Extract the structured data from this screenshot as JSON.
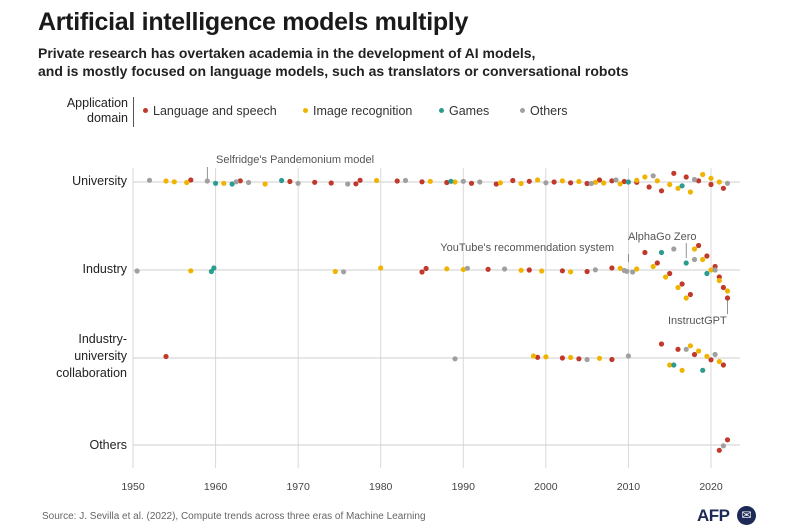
{
  "title": "Artificial intelligence models multiply",
  "subtitle_line1": "Private research has overtaken academia in the development of AI models,",
  "subtitle_line2": "and is mostly focused on language models, such as translators or conversational robots",
  "legend": {
    "title_line1": "Application",
    "title_line2": "domain",
    "items": [
      {
        "label": "Language and speech",
        "color": "#c0392b"
      },
      {
        "label": "Image recognition",
        "color": "#f0b400"
      },
      {
        "label": "Games",
        "color": "#2a9d8f"
      },
      {
        "label": "Others",
        "color": "#a0a0a0"
      }
    ]
  },
  "row_labels": {
    "university": "University",
    "industry": "Industry",
    "collab_line1": "Industry-",
    "collab_line2": "university",
    "collab_line3": "collaboration",
    "others": "Others"
  },
  "source": "Source: J. Sevilla et al. (2022), Compute trends across three eras of Machine Learning",
  "logo": {
    "text": "AFP",
    "icon": "afp-circle-icon"
  },
  "chart_data": {
    "type": "scatter",
    "title": "Artificial intelligence models multiply",
    "xlim": [
      1950,
      2022
    ],
    "x_ticks": [
      1950,
      1960,
      1970,
      1980,
      1990,
      2000,
      2010,
      2020
    ],
    "grid": true,
    "legend_placement": "top-left",
    "rows": [
      "University",
      "Industry",
      "Industry-university collaboration",
      "Others"
    ],
    "annotations": [
      {
        "text": "Selfridge's Pandemonium model",
        "row": "University",
        "x": 1959
      },
      {
        "text": "YouTube's recommendation system",
        "row": "Industry",
        "x": 2010
      },
      {
        "text": "AlphaGo Zero",
        "row": "Industry",
        "x": 2017
      },
      {
        "text": "InstructGPT",
        "row": "Industry",
        "x": 2022
      }
    ],
    "series": [
      {
        "name": "Language and speech",
        "color": "#c0392b",
        "points": [
          {
            "row": "University",
            "x": 1957
          },
          {
            "row": "University",
            "x": 1963
          },
          {
            "row": "University",
            "x": 1969
          },
          {
            "row": "University",
            "x": 1972
          },
          {
            "row": "University",
            "x": 1974
          },
          {
            "row": "University",
            "x": 1977
          },
          {
            "row": "University",
            "x": 1977.5
          },
          {
            "row": "University",
            "x": 1982
          },
          {
            "row": "University",
            "x": 1985
          },
          {
            "row": "University",
            "x": 1988
          },
          {
            "row": "University",
            "x": 1991
          },
          {
            "row": "University",
            "x": 1994
          },
          {
            "row": "University",
            "x": 1996
          },
          {
            "row": "University",
            "x": 1998
          },
          {
            "row": "University",
            "x": 2001
          },
          {
            "row": "University",
            "x": 2003
          },
          {
            "row": "University",
            "x": 2005
          },
          {
            "row": "University",
            "x": 2006.5
          },
          {
            "row": "University",
            "x": 2008
          },
          {
            "row": "University",
            "x": 2009.5
          },
          {
            "row": "University",
            "x": 2011
          },
          {
            "row": "University",
            "x": 2012.5
          },
          {
            "row": "University",
            "x": 2014
          },
          {
            "row": "University",
            "x": 2015.5
          },
          {
            "row": "University",
            "x": 2017
          },
          {
            "row": "University",
            "x": 2018.5
          },
          {
            "row": "University",
            "x": 2020
          },
          {
            "row": "University",
            "x": 2021.5
          },
          {
            "row": "Industry",
            "x": 1985
          },
          {
            "row": "Industry",
            "x": 1985.5
          },
          {
            "row": "Industry",
            "x": 1993
          },
          {
            "row": "Industry",
            "x": 1998
          },
          {
            "row": "Industry",
            "x": 2002
          },
          {
            "row": "Industry",
            "x": 2005
          },
          {
            "row": "Industry",
            "x": 2008
          },
          {
            "row": "Industry",
            "x": 2012
          },
          {
            "row": "Industry",
            "x": 2013.5
          },
          {
            "row": "Industry",
            "x": 2015
          },
          {
            "row": "Industry",
            "x": 2016.5
          },
          {
            "row": "Industry",
            "x": 2017.5
          },
          {
            "row": "Industry",
            "x": 2018.5
          },
          {
            "row": "Industry",
            "x": 2019.5
          },
          {
            "row": "Industry",
            "x": 2020.5
          },
          {
            "row": "Industry",
            "x": 2021
          },
          {
            "row": "Industry",
            "x": 2021.5
          },
          {
            "row": "Industry",
            "x": 2022
          },
          {
            "row": "Industry-university collaboration",
            "x": 1954
          },
          {
            "row": "Industry-university collaboration",
            "x": 1999
          },
          {
            "row": "Industry-university collaboration",
            "x": 2002
          },
          {
            "row": "Industry-university collaboration",
            "x": 2004
          },
          {
            "row": "Industry-university collaboration",
            "x": 2008
          },
          {
            "row": "Industry-university collaboration",
            "x": 2014
          },
          {
            "row": "Industry-university collaboration",
            "x": 2016
          },
          {
            "row": "Industry-university collaboration",
            "x": 2018
          },
          {
            "row": "Industry-university collaboration",
            "x": 2020
          },
          {
            "row": "Industry-university collaboration",
            "x": 2021.5
          },
          {
            "row": "Others",
            "x": 2021
          },
          {
            "row": "Others",
            "x": 2022
          }
        ]
      },
      {
        "name": "Image recognition",
        "color": "#f0b400",
        "points": [
          {
            "row": "University",
            "x": 1954
          },
          {
            "row": "University",
            "x": 1955
          },
          {
            "row": "University",
            "x": 1956.5
          },
          {
            "row": "University",
            "x": 1961
          },
          {
            "row": "University",
            "x": 1966
          },
          {
            "row": "University",
            "x": 1979.5
          },
          {
            "row": "University",
            "x": 1986
          },
          {
            "row": "University",
            "x": 1989
          },
          {
            "row": "University",
            "x": 1994.5
          },
          {
            "row": "University",
            "x": 1997
          },
          {
            "row": "University",
            "x": 1999
          },
          {
            "row": "University",
            "x": 2002
          },
          {
            "row": "University",
            "x": 2004
          },
          {
            "row": "University",
            "x": 2006
          },
          {
            "row": "University",
            "x": 2007
          },
          {
            "row": "University",
            "x": 2009
          },
          {
            "row": "University",
            "x": 2011
          },
          {
            "row": "University",
            "x": 2012
          },
          {
            "row": "University",
            "x": 2013.5
          },
          {
            "row": "University",
            "x": 2015
          },
          {
            "row": "University",
            "x": 2016
          },
          {
            "row": "University",
            "x": 2017.5
          },
          {
            "row": "University",
            "x": 2019
          },
          {
            "row": "University",
            "x": 2020
          },
          {
            "row": "University",
            "x": 2021
          },
          {
            "row": "Industry",
            "x": 1957
          },
          {
            "row": "Industry",
            "x": 1974.5
          },
          {
            "row": "Industry",
            "x": 1980
          },
          {
            "row": "Industry",
            "x": 1988
          },
          {
            "row": "Industry",
            "x": 1990
          },
          {
            "row": "Industry",
            "x": 1997
          },
          {
            "row": "Industry",
            "x": 1999.5
          },
          {
            "row": "Industry",
            "x": 2003
          },
          {
            "row": "Industry",
            "x": 2009
          },
          {
            "row": "Industry",
            "x": 2011
          },
          {
            "row": "Industry",
            "x": 2013
          },
          {
            "row": "Industry",
            "x": 2014.5
          },
          {
            "row": "Industry",
            "x": 2016
          },
          {
            "row": "Industry",
            "x": 2017
          },
          {
            "row": "Industry",
            "x": 2018
          },
          {
            "row": "Industry",
            "x": 2019
          },
          {
            "row": "Industry",
            "x": 2020
          },
          {
            "row": "Industry",
            "x": 2021
          },
          {
            "row": "Industry",
            "x": 2022
          },
          {
            "row": "Industry-university collaboration",
            "x": 1998.5
          },
          {
            "row": "Industry-university collaboration",
            "x": 2000
          },
          {
            "row": "Industry-university collaboration",
            "x": 2003
          },
          {
            "row": "Industry-university collaboration",
            "x": 2006.5
          },
          {
            "row": "Industry-university collaboration",
            "x": 2015
          },
          {
            "row": "Industry-university collaboration",
            "x": 2016.5
          },
          {
            "row": "Industry-university collaboration",
            "x": 2017.5
          },
          {
            "row": "Industry-university collaboration",
            "x": 2018.5
          },
          {
            "row": "Industry-university collaboration",
            "x": 2019.5
          },
          {
            "row": "Industry-university collaboration",
            "x": 2021
          }
        ]
      },
      {
        "name": "Games",
        "color": "#2a9d8f",
        "points": [
          {
            "row": "University",
            "x": 1960
          },
          {
            "row": "University",
            "x": 1962
          },
          {
            "row": "University",
            "x": 1968
          },
          {
            "row": "University",
            "x": 1988.5
          },
          {
            "row": "University",
            "x": 2010
          },
          {
            "row": "University",
            "x": 2016.5
          },
          {
            "row": "Industry",
            "x": 1959.5
          },
          {
            "row": "Industry",
            "x": 1959.8
          },
          {
            "row": "Industry",
            "x": 2014
          },
          {
            "row": "Industry",
            "x": 2017
          },
          {
            "row": "Industry",
            "x": 2019.5
          },
          {
            "row": "Industry-university collaboration",
            "x": 2015.5
          },
          {
            "row": "Industry-university collaboration",
            "x": 2019
          }
        ]
      },
      {
        "name": "Others",
        "color": "#a0a0a0",
        "points": [
          {
            "row": "University",
            "x": 1952
          },
          {
            "row": "University",
            "x": 1959
          },
          {
            "row": "University",
            "x": 1962.5
          },
          {
            "row": "University",
            "x": 1964
          },
          {
            "row": "University",
            "x": 1970
          },
          {
            "row": "University",
            "x": 1976
          },
          {
            "row": "University",
            "x": 1983
          },
          {
            "row": "University",
            "x": 1990
          },
          {
            "row": "University",
            "x": 1992
          },
          {
            "row": "University",
            "x": 2000
          },
          {
            "row": "University",
            "x": 2005.5
          },
          {
            "row": "University",
            "x": 2008.5
          },
          {
            "row": "University",
            "x": 2013
          },
          {
            "row": "University",
            "x": 2018
          },
          {
            "row": "University",
            "x": 2022
          },
          {
            "row": "Industry",
            "x": 1950.5
          },
          {
            "row": "Industry",
            "x": 1975.5
          },
          {
            "row": "Industry",
            "x": 1990.5
          },
          {
            "row": "Industry",
            "x": 1995
          },
          {
            "row": "Industry",
            "x": 2006
          },
          {
            "row": "Industry",
            "x": 2009.5
          },
          {
            "row": "Industry",
            "x": 2009.8
          },
          {
            "row": "Industry",
            "x": 2010.5
          },
          {
            "row": "Industry",
            "x": 2015.5
          },
          {
            "row": "Industry",
            "x": 2018
          },
          {
            "row": "Industry",
            "x": 2020.5
          },
          {
            "row": "Industry-university collaboration",
            "x": 1989
          },
          {
            "row": "Industry-university collaboration",
            "x": 2005
          },
          {
            "row": "Industry-university collaboration",
            "x": 2010
          },
          {
            "row": "Industry-university collaboration",
            "x": 2017
          },
          {
            "row": "Industry-university collaboration",
            "x": 2020.5
          },
          {
            "row": "Others",
            "x": 2021.5
          }
        ]
      }
    ]
  }
}
